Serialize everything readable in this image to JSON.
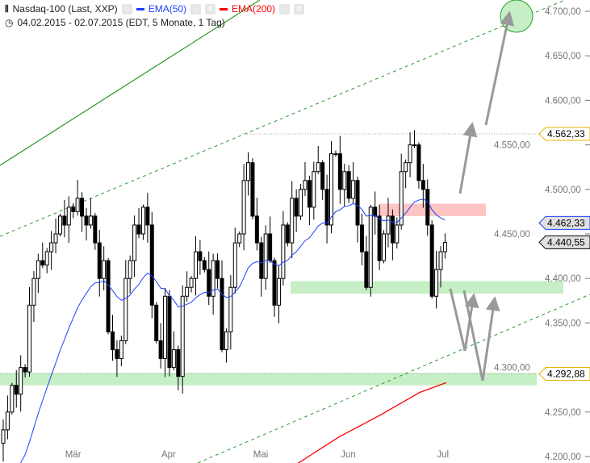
{
  "header": {
    "title": "Nasdaq-100 (Last, XXP)",
    "ema50_label": "EMA(50)",
    "ema200_label": "EMA(200)",
    "range": "04.02.2015 - 02.07.2015 (EDT, 5 Monate, 1 Tag)"
  },
  "colors": {
    "ema50": "#1f3fff",
    "ema200": "#ff0000",
    "support": "#c6efc6",
    "resistance": "#ffc4c4",
    "trend": "#2a9a2a"
  },
  "chart_data": {
    "type": "candlestick",
    "title": "Nasdaq-100 (Last, XXP)",
    "ylim": [
      4200,
      4700
    ],
    "yticks": [
      "4.200,00",
      "4.250,00",
      "4.300,00",
      "4.350,00",
      "4.400,00",
      "4.450,00",
      "4.500,00",
      "4.550,00",
      "4.600,00",
      "4.650,00",
      "4.700,00"
    ],
    "ytick_values": [
      4200,
      4250,
      4300,
      4350,
      4400,
      4450,
      4500,
      4550,
      4600,
      4650,
      4700
    ],
    "months": [
      {
        "label": "Mär",
        "index": 16
      },
      {
        "label": "Apr",
        "index": 38
      },
      {
        "label": "Mai",
        "index": 59
      },
      {
        "label": "Jun",
        "index": 79
      },
      {
        "label": "Jul",
        "index": 101
      }
    ],
    "closes": [
      4230,
      4250,
      4280,
      4270,
      4300,
      4295,
      4370,
      4400,
      4420,
      4415,
      4430,
      4440,
      4450,
      4470,
      4460,
      4480,
      4475,
      4490,
      4470,
      4460,
      4470,
      4440,
      4400,
      4420,
      4340,
      4320,
      4310,
      4330,
      4400,
      4420,
      4460,
      4450,
      4480,
      4460,
      4370,
      4330,
      4310,
      4380,
      4300,
      4320,
      4290,
      4380,
      4390,
      4400,
      4430,
      4420,
      4410,
      4380,
      4420,
      4400,
      4320,
      4340,
      4390,
      4440,
      4450,
      4510,
      4530,
      4470,
      4440,
      4400,
      4450,
      4420,
      4370,
      4400,
      4460,
      4440,
      4490,
      4470,
      4500,
      4510,
      4480,
      4520,
      4530,
      4500,
      4460,
      4540,
      4540,
      4500,
      4520,
      4490,
      4510,
      4460,
      4430,
      4390,
      4480,
      4470,
      4420,
      4450,
      4470,
      4440,
      4460,
      4520,
      4530,
      4550,
      4550,
      4510,
      4500,
      4460,
      4380,
      4410,
      4430,
      4440.55
    ],
    "ema200": [
      [
        365,
        4190
      ],
      [
        420,
        4222
      ],
      [
        470,
        4246
      ],
      [
        520,
        4272
      ],
      [
        553,
        4283
      ]
    ],
    "price_labels": [
      {
        "text": "4.562,33",
        "value": 4562.33,
        "style": "level"
      },
      {
        "text": "4.462,33",
        "value": 4462.33,
        "style": "ema50"
      },
      {
        "text": "4.440,55",
        "value": 4440.55,
        "style": "last"
      },
      {
        "text": "4.292,88",
        "value": 4292.88,
        "style": "level"
      }
    ],
    "zones": [
      {
        "type": "support",
        "from": 4280,
        "to": 4294
      },
      {
        "type": "support",
        "from": 4383,
        "to": 4397
      },
      {
        "type": "resistance",
        "from": 4470,
        "to": 4484
      }
    ]
  }
}
